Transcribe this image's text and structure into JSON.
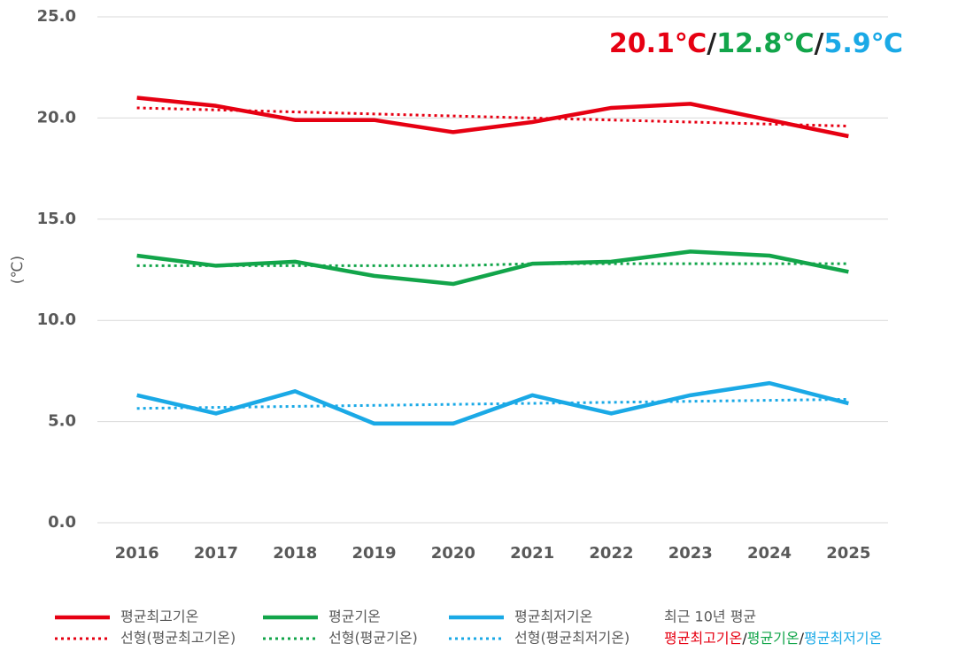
{
  "chart_data": {
    "type": "line",
    "ylabel": "(℃)",
    "categories": [
      "2016",
      "2017",
      "2018",
      "2019",
      "2020",
      "2021",
      "2022",
      "2023",
      "2024",
      "2025"
    ],
    "series": [
      {
        "name": "평균최고기온",
        "color": "#e60012",
        "style": "solid",
        "values": [
          21.0,
          20.6,
          19.9,
          19.9,
          19.3,
          19.8,
          20.5,
          20.7,
          19.9,
          19.1
        ]
      },
      {
        "name": "평균기온",
        "color": "#12a54a",
        "style": "solid",
        "values": [
          13.2,
          12.7,
          12.9,
          12.2,
          11.8,
          12.8,
          12.9,
          13.4,
          13.2,
          12.4
        ]
      },
      {
        "name": "평균최저기온",
        "color": "#1aa9e6",
        "style": "solid",
        "values": [
          6.3,
          5.4,
          6.5,
          4.9,
          4.9,
          6.3,
          5.4,
          6.3,
          6.9,
          5.9
        ]
      },
      {
        "name": "선형(평균최고기온)",
        "color": "#e60012",
        "style": "dotted",
        "values": [
          20.5,
          20.4,
          20.3,
          20.2,
          20.1,
          20.0,
          19.9,
          19.8,
          19.7,
          19.6
        ]
      },
      {
        "name": "선형(평균기온)",
        "color": "#12a54a",
        "style": "dotted",
        "values": [
          12.7,
          12.7,
          12.7,
          12.7,
          12.7,
          12.8,
          12.8,
          12.8,
          12.8,
          12.8
        ]
      },
      {
        "name": "선형(평균최저기온)",
        "color": "#1aa9e6",
        "style": "dotted",
        "values": [
          5.65,
          5.7,
          5.75,
          5.8,
          5.85,
          5.9,
          5.95,
          6.0,
          6.05,
          6.1
        ]
      }
    ],
    "ylim": [
      0,
      25
    ],
    "yticks": [
      {
        "value": 0,
        "label": "0.0"
      },
      {
        "value": 5,
        "label": "5.0"
      },
      {
        "value": 10,
        "label": "10.0"
      },
      {
        "value": 15,
        "label": "15.0"
      },
      {
        "value": 20,
        "label": "20.0"
      },
      {
        "value": 25,
        "label": "25.0"
      }
    ],
    "grid": true,
    "annotation": [
      {
        "text": "20.1℃",
        "color": "#e60012"
      },
      {
        "text": "/",
        "color": "#222222"
      },
      {
        "text": "12.8℃",
        "color": "#12a54a"
      },
      {
        "text": "/",
        "color": "#222222"
      },
      {
        "text": "5.9℃",
        "color": "#1aa9e6"
      }
    ],
    "legend_note": "최근 10년 평균",
    "legend_note_parts": [
      {
        "text": "평균최고기온",
        "color": "#e60012"
      },
      {
        "text": "/",
        "color": "#222222"
      },
      {
        "text": "평균기온",
        "color": "#12a54a"
      },
      {
        "text": "/",
        "color": "#222222"
      },
      {
        "text": "평균최저기온",
        "color": "#1aa9e6"
      }
    ]
  }
}
